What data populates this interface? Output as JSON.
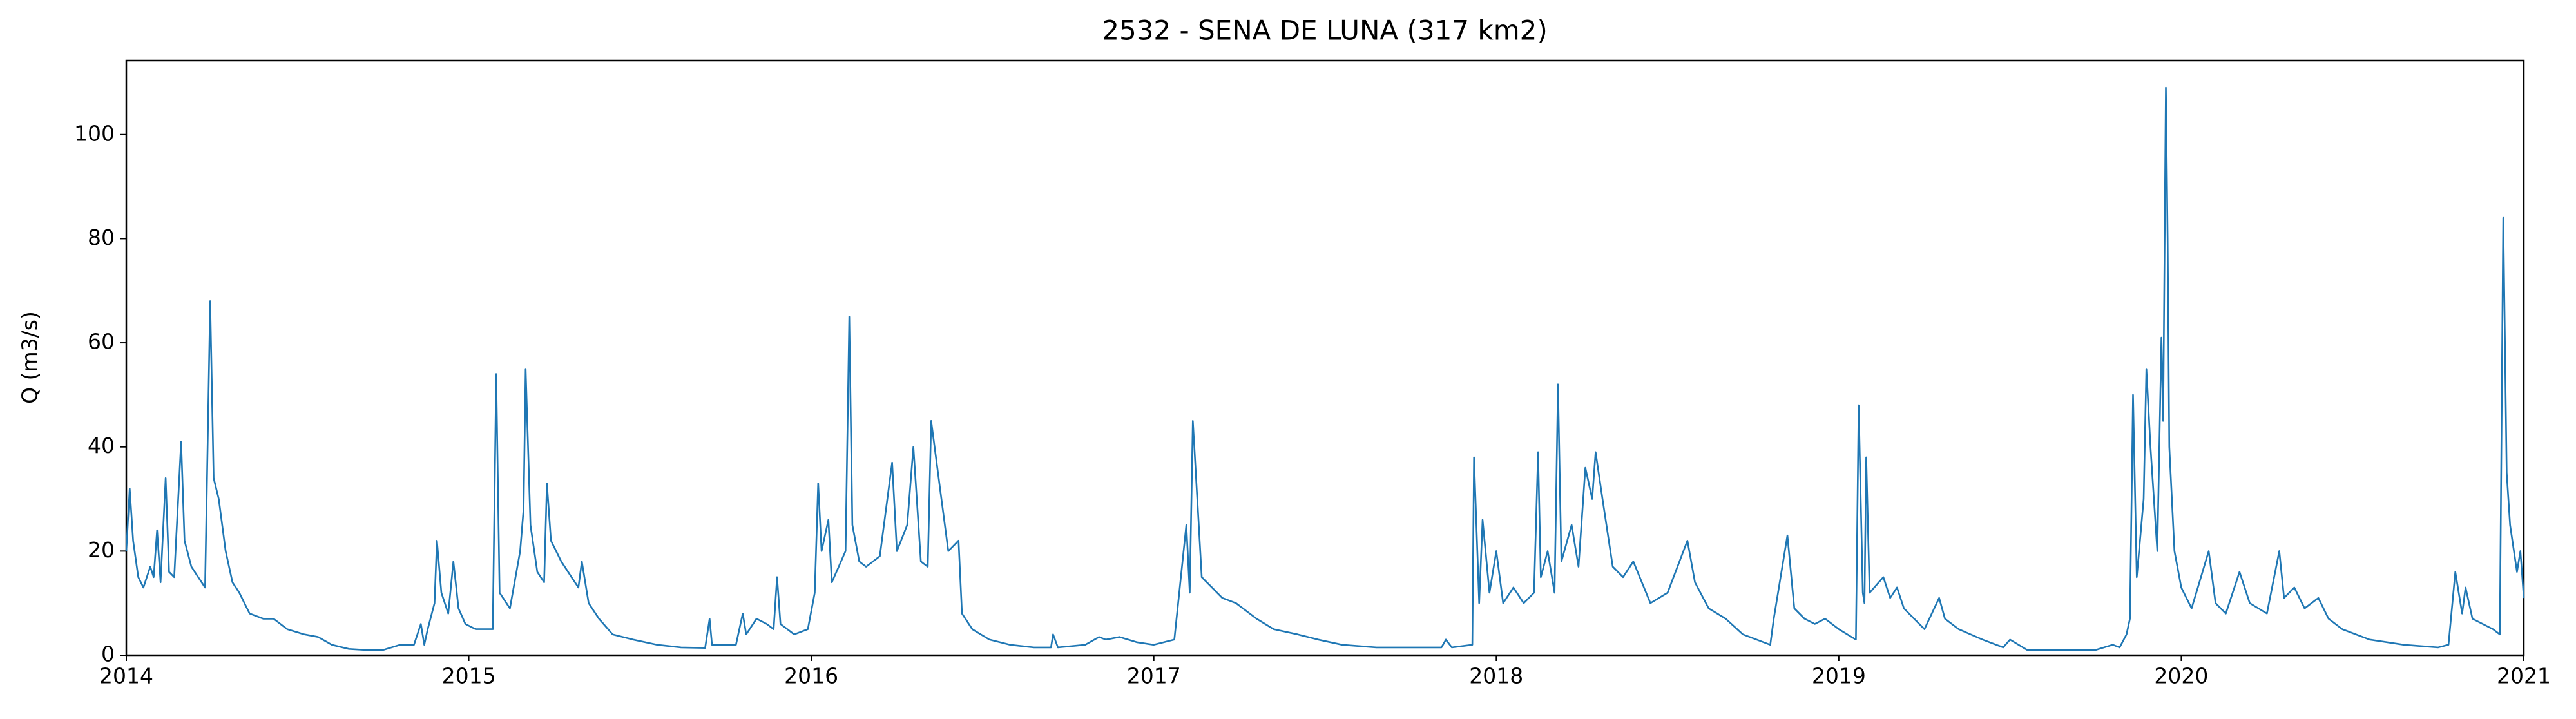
{
  "chart_data": {
    "type": "line",
    "title": "2532 - SENA DE LUNA (317 km2)",
    "ylabel": "Q (m3/s)",
    "color": "#1f77b4",
    "xlim": [
      2014,
      2021
    ],
    "xticks": [
      2014,
      2015,
      2016,
      2017,
      2018,
      2019,
      2020,
      2021
    ],
    "ylim": [
      0,
      114.2
    ],
    "yticks": [
      0,
      20,
      40,
      60,
      80,
      100
    ],
    "x": [
      2014.0,
      2014.01,
      2014.02,
      2014.035,
      2014.05,
      2014.07,
      2014.08,
      2014.09,
      2014.1,
      2014.115,
      2014.125,
      2014.14,
      2014.16,
      2014.17,
      2014.19,
      2014.21,
      2014.23,
      2014.245,
      2014.255,
      2014.27,
      2014.29,
      2014.31,
      2014.33,
      2014.36,
      2014.4,
      2014.43,
      2014.47,
      2014.52,
      2014.56,
      2014.6,
      2014.65,
      2014.7,
      2014.75,
      2014.8,
      2014.84,
      2014.86,
      2014.87,
      2014.88,
      2014.9,
      2014.907,
      2014.92,
      2014.94,
      2014.955,
      2014.97,
      2014.99,
      2015.02,
      2015.07,
      2015.08,
      2015.09,
      2015.12,
      2015.15,
      2015.16,
      2015.166,
      2015.18,
      2015.2,
      2015.22,
      2015.228,
      2015.24,
      2015.27,
      2015.3,
      2015.32,
      2015.33,
      2015.35,
      2015.38,
      2015.42,
      2015.48,
      2015.55,
      2015.62,
      2015.69,
      2015.703,
      2015.71,
      2015.78,
      2015.8,
      2015.81,
      2015.84,
      2015.87,
      2015.89,
      2015.9,
      2015.91,
      2015.95,
      2015.99,
      2016.01,
      2016.02,
      2016.03,
      2016.05,
      2016.06,
      2016.08,
      2016.1,
      2016.111,
      2016.12,
      2016.14,
      2016.16,
      2016.2,
      2016.236,
      2016.25,
      2016.28,
      2016.298,
      2016.32,
      2016.34,
      2016.35,
      2016.38,
      2016.4,
      2016.43,
      2016.44,
      2016.47,
      2016.52,
      2016.58,
      2016.65,
      2016.7,
      2016.706,
      2016.72,
      2016.8,
      2016.84,
      2016.86,
      2016.9,
      2016.95,
      2017.0,
      2017.06,
      2017.095,
      2017.105,
      2017.114,
      2017.14,
      2017.17,
      2017.2,
      2017.24,
      2017.3,
      2017.35,
      2017.42,
      2017.48,
      2017.55,
      2017.65,
      2017.75,
      2017.84,
      2017.853,
      2017.87,
      2017.93,
      2017.935,
      2017.95,
      2017.96,
      2017.98,
      2018.0,
      2018.02,
      2018.05,
      2018.08,
      2018.11,
      2018.122,
      2018.13,
      2018.15,
      2018.17,
      2018.18,
      2018.19,
      2018.22,
      2018.24,
      2018.26,
      2018.28,
      2018.29,
      2018.31,
      2018.34,
      2018.37,
      2018.4,
      2018.45,
      2018.5,
      2018.558,
      2018.58,
      2018.62,
      2018.67,
      2018.72,
      2018.78,
      2018.8,
      2018.81,
      2018.83,
      2018.85,
      2018.87,
      2018.9,
      2018.93,
      2018.96,
      2019.0,
      2019.05,
      2019.058,
      2019.07,
      2019.075,
      2019.08,
      2019.09,
      2019.13,
      2019.15,
      2019.17,
      2019.19,
      2019.22,
      2019.25,
      2019.293,
      2019.31,
      2019.35,
      2019.42,
      2019.48,
      2019.5,
      2019.55,
      2019.65,
      2019.75,
      2019.8,
      2019.82,
      2019.84,
      2019.85,
      2019.859,
      2019.87,
      2019.89,
      2019.898,
      2019.91,
      2019.93,
      2019.942,
      2019.947,
      2019.955,
      2019.96,
      2019.965,
      2019.98,
      2020.0,
      2020.03,
      2020.08,
      2020.1,
      2020.13,
      2020.17,
      2020.2,
      2020.25,
      2020.286,
      2020.3,
      2020.33,
      2020.36,
      2020.4,
      2020.43,
      2020.47,
      2020.55,
      2020.65,
      2020.75,
      2020.78,
      2020.8,
      2020.82,
      2020.83,
      2020.85,
      2020.88,
      2020.91,
      2020.93,
      2020.94,
      2020.95,
      2020.96,
      2020.98,
      2020.99,
      2021.0
    ],
    "values": [
      20,
      32,
      22,
      15,
      13,
      17,
      15,
      24,
      14,
      34,
      16,
      15,
      41,
      22,
      17,
      15,
      13,
      68,
      34,
      30,
      20,
      14,
      12,
      8,
      7,
      7,
      5,
      4,
      3.5,
      2,
      1.2,
      1,
      1,
      2,
      2,
      6,
      2,
      5,
      10,
      22,
      12,
      8,
      18,
      9,
      6,
      5,
      5,
      54,
      12,
      9,
      20,
      28,
      55,
      25,
      16,
      14,
      33,
      22,
      18,
      15,
      13,
      18,
      10,
      7,
      4,
      3,
      2,
      1.5,
      1.4,
      7,
      2,
      2,
      8,
      4,
      7,
      6,
      5,
      15,
      6,
      4,
      5,
      12,
      33,
      20,
      26,
      14,
      17,
      20,
      65,
      25,
      18,
      17,
      19,
      37,
      20,
      25,
      40,
      18,
      17,
      45,
      30,
      20,
      22,
      8,
      5,
      3,
      2,
      1.5,
      1.5,
      4,
      1.5,
      2,
      3.5,
      3,
      3.5,
      2.5,
      2,
      3,
      25,
      12,
      45,
      15,
      13,
      11,
      10,
      7,
      5,
      4,
      3,
      2,
      1.5,
      1.5,
      1.5,
      3,
      1.5,
      2,
      38,
      10,
      26,
      12,
      20,
      10,
      13,
      10,
      12,
      39,
      15,
      20,
      12,
      52,
      18,
      25,
      17,
      36,
      30,
      39,
      30,
      17,
      15,
      18,
      10,
      12,
      22,
      14,
      9,
      7,
      4,
      2.5,
      2,
      7,
      15,
      23,
      9,
      7,
      6,
      7,
      5,
      3,
      48,
      12,
      10,
      38,
      12,
      15,
      11,
      13,
      9,
      7,
      5,
      11,
      7,
      5,
      3,
      1.5,
      3,
      1,
      1,
      1,
      2,
      1.5,
      4,
      7,
      50,
      15,
      30,
      55,
      40,
      20,
      61,
      45,
      109,
      80,
      40,
      20,
      13,
      9,
      20,
      10,
      8,
      16,
      10,
      8,
      20,
      11,
      13,
      9,
      11,
      7,
      5,
      3,
      2,
      1.5,
      2,
      16,
      8,
      13,
      7,
      6,
      5,
      4,
      84,
      35,
      25,
      16,
      20,
      11
    ]
  }
}
